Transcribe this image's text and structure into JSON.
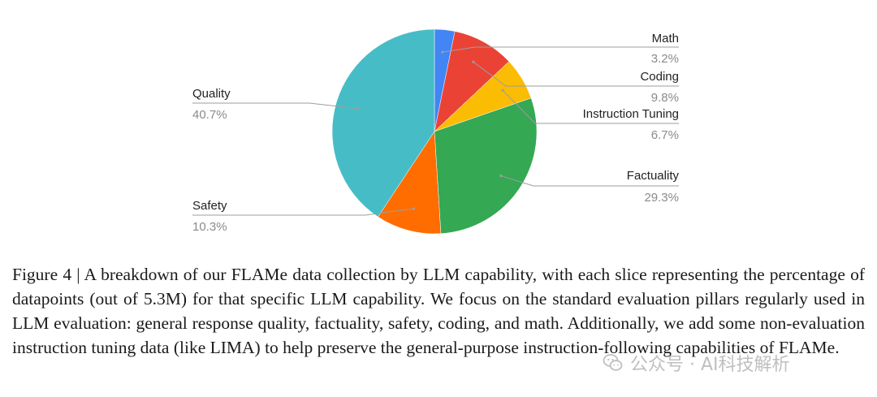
{
  "chart_data": {
    "type": "pie",
    "slices": [
      {
        "name": "Math",
        "value": 3.2,
        "label": "3.2%",
        "color": "#4285F4"
      },
      {
        "name": "Coding",
        "value": 9.8,
        "label": "9.8%",
        "color": "#EA4335"
      },
      {
        "name": "Instruction Tuning",
        "value": 6.7,
        "label": "6.7%",
        "color": "#FBBC04"
      },
      {
        "name": "Factuality",
        "value": 29.3,
        "label": "29.3%",
        "color": "#34A853"
      },
      {
        "name": "Safety",
        "value": 10.3,
        "label": "10.3%",
        "color": "#FF6D01"
      },
      {
        "name": "Quality",
        "value": 40.7,
        "label": "40.7%",
        "color": "#46BDC6"
      }
    ],
    "start_angle_deg": 0,
    "direction": "clockwise",
    "label_style": "outside labels with leader lines"
  },
  "caption": "Figure 4 | A breakdown of our FLAMe data collection by LLM capability, with each slice representing the percentage of datapoints (out of 5.3M) for that specific LLM capability. We focus on the standard evaluation pillars regularly used in LLM evaluation: general response quality, factuality, safety, coding, and math. Additionally, we add some non-evaluation instruction tuning data (like LIMA) to help preserve the general-purpose instruction-following capabilities of FLAMe.",
  "watermark": {
    "text": "公众号 · AI科技解析",
    "icon": "wechat-logo-icon"
  }
}
